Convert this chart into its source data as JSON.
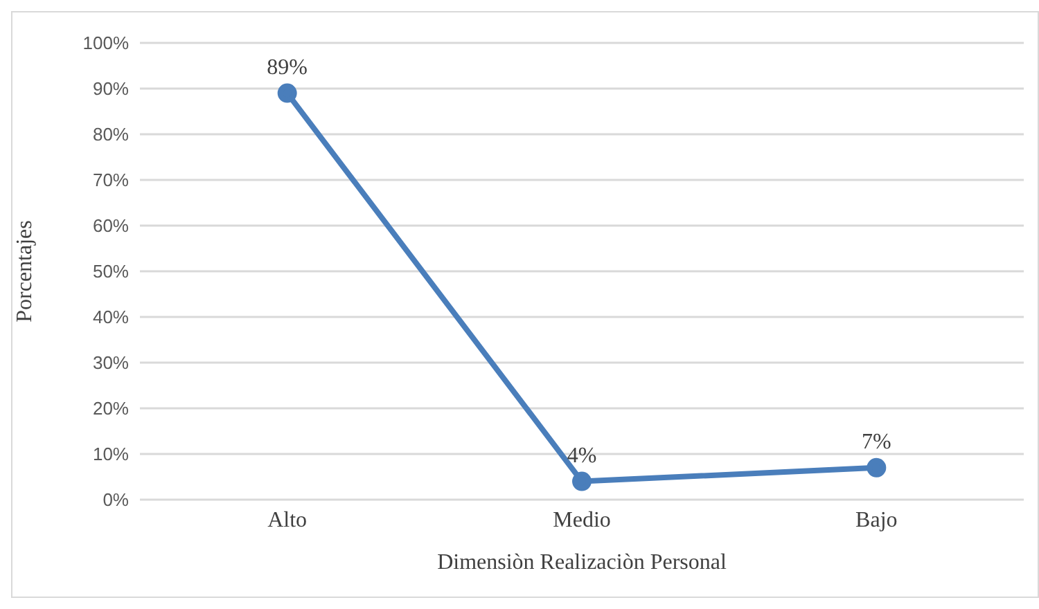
{
  "chart_data": {
    "type": "line",
    "xlabel": "Dimensiòn Realizaciòn Personal",
    "ylabel": "Porcentajes",
    "categories": [
      "Alto",
      "Medio",
      "Bajo"
    ],
    "series": [
      {
        "color": "#4a7ebb",
        "values": [
          89,
          4,
          7
        ],
        "value_labels": [
          "89%",
          "4%",
          "7%"
        ]
      }
    ],
    "ylim": [
      0,
      100
    ],
    "yticks": [
      {
        "value": 0,
        "label": "0%"
      },
      {
        "value": 10,
        "label": "10%"
      },
      {
        "value": 20,
        "label": "20%"
      },
      {
        "value": 30,
        "label": "30%"
      },
      {
        "value": 40,
        "label": "40%"
      },
      {
        "value": 50,
        "label": "50%"
      },
      {
        "value": 60,
        "label": "60%"
      },
      {
        "value": 70,
        "label": "70%"
      },
      {
        "value": 80,
        "label": "80%"
      },
      {
        "value": 90,
        "label": "90%"
      },
      {
        "value": 100,
        "label": "100%"
      }
    ],
    "grid": "y",
    "legend": false,
    "marker": "circle",
    "line_style": "solid"
  }
}
